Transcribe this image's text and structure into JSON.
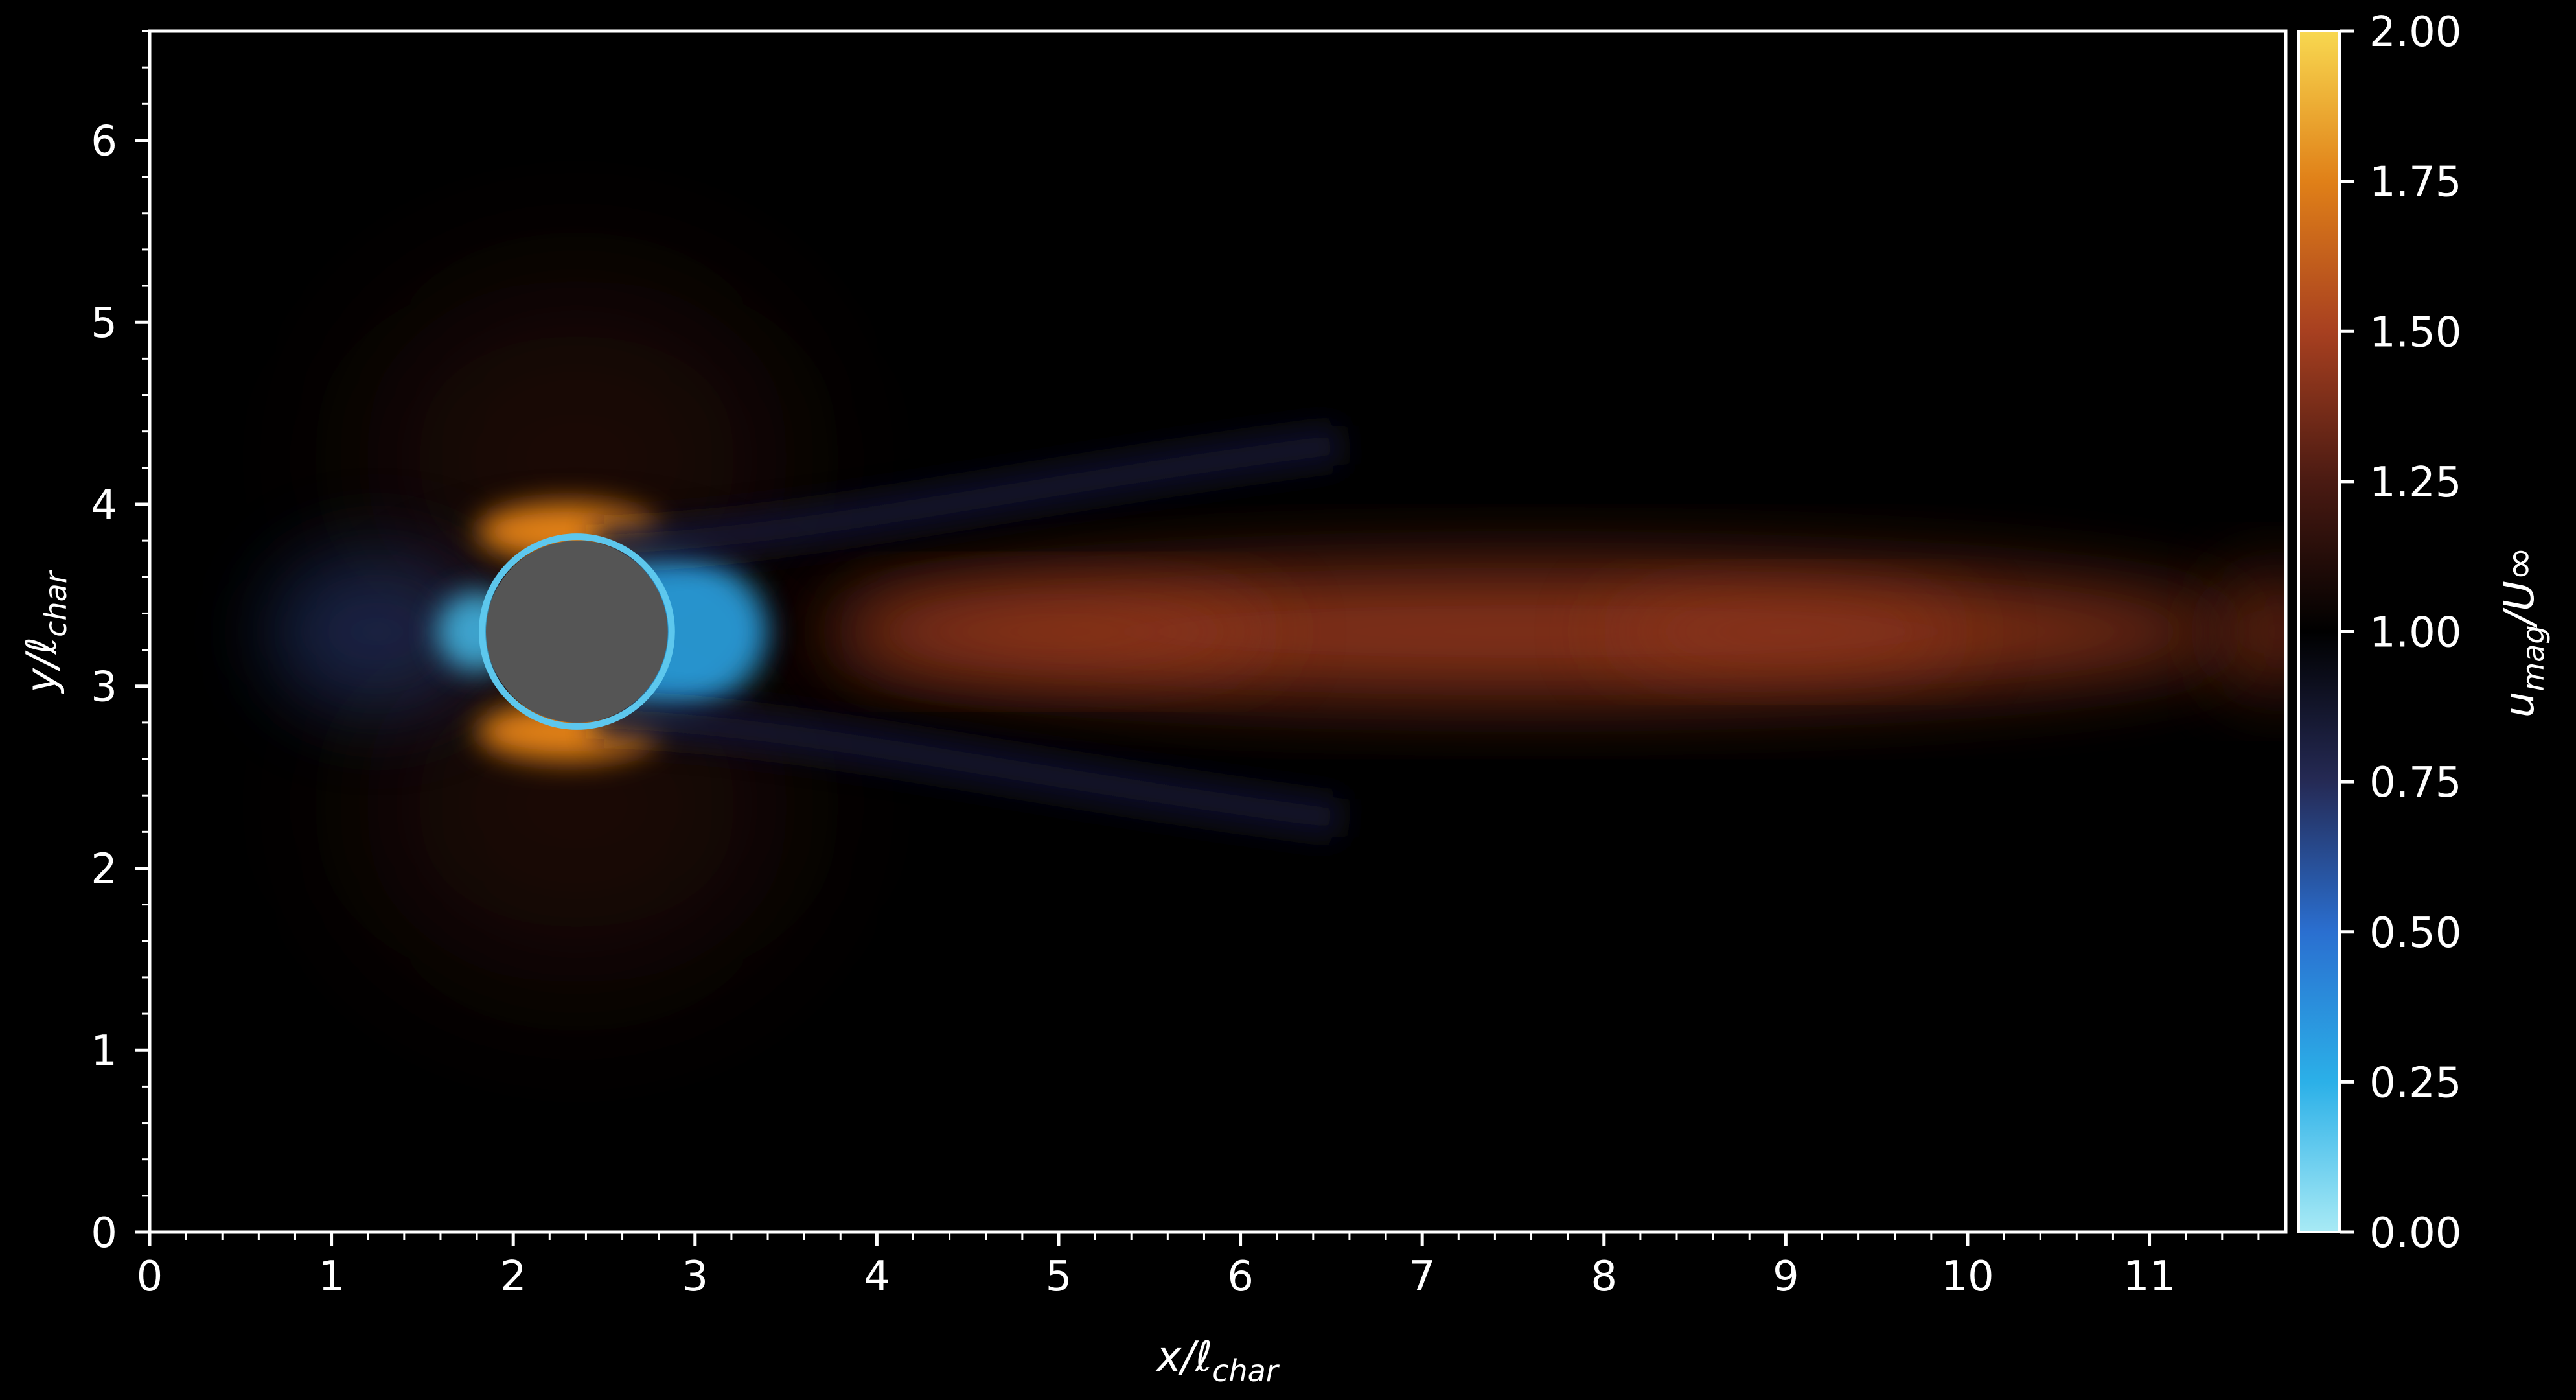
{
  "chart_data": {
    "type": "heatmap",
    "title": "",
    "xlabel": "x/ℓ_char",
    "ylabel": "y/ℓ_char",
    "xlim": [
      0,
      11.75
    ],
    "ylim": [
      0,
      6.6
    ],
    "x_ticks": [
      0,
      1,
      2,
      3,
      4,
      5,
      6,
      7,
      8,
      9,
      10,
      11
    ],
    "y_ticks": [
      0,
      1,
      2,
      3,
      4,
      5,
      6
    ],
    "grid": false,
    "field": "time-averaged velocity magnitude around a circular cylinder",
    "obstacle": {
      "shape": "circle",
      "center": [
        2.35,
        3.3
      ],
      "radius": 0.5,
      "color": "#555555"
    },
    "features": {
      "wake_centerline_y": 3.3,
      "wake_value_peak": 1.45,
      "stagnation_value": 0.2,
      "shoulder_value_peak": 1.75,
      "recirculation_value": 0.3
    },
    "colorbar": {
      "label": "u_mag/U∞",
      "min": 0.0,
      "max": 2.0,
      "ticks": [
        "0.00",
        "0.25",
        "0.50",
        "0.75",
        "1.00",
        "1.25",
        "1.50",
        "1.75",
        "2.00"
      ],
      "stops": [
        {
          "value": 0.0,
          "color": "#a8eaf5"
        },
        {
          "value": 0.25,
          "color": "#2bb0e8"
        },
        {
          "value": 0.5,
          "color": "#2a6fd0"
        },
        {
          "value": 0.75,
          "color": "#252a55"
        },
        {
          "value": 1.0,
          "color": "#000000"
        },
        {
          "value": 1.25,
          "color": "#4a1a12"
        },
        {
          "value": 1.5,
          "color": "#a84020"
        },
        {
          "value": 1.75,
          "color": "#e08018"
        },
        {
          "value": 2.0,
          "color": "#f8d850"
        }
      ]
    }
  }
}
